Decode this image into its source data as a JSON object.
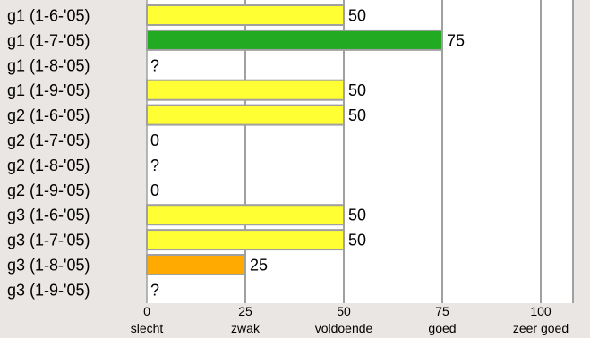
{
  "chart_data": {
    "type": "bar",
    "orientation": "horizontal",
    "categories": [
      "g1 (1-6-'05)",
      "g1 (1-7-'05)",
      "g1 (1-8-'05)",
      "g1 (1-9-'05)",
      "g2 (1-6-'05)",
      "g2 (1-7-'05)",
      "g2 (1-8-'05)",
      "g2 (1-9-'05)",
      "g3 (1-6-'05)",
      "g3 (1-7-'05)",
      "g3 (1-8-'05)",
      "g3 (1-9-'05)"
    ],
    "values": [
      50,
      75,
      null,
      50,
      50,
      0,
      null,
      0,
      50,
      50,
      25,
      null
    ],
    "value_labels": [
      "50",
      "75",
      "?",
      "50",
      "50",
      "0",
      "?",
      "0",
      "50",
      "50",
      "25",
      "?"
    ],
    "xlim": [
      0,
      100
    ],
    "xticks": [
      0,
      25,
      50,
      75,
      100
    ],
    "xtick_words": [
      "slecht",
      "zwak",
      "voldoende",
      "goed",
      "zeer goed"
    ],
    "grid": true,
    "color_scale": [
      {
        "value": 25,
        "color": "#ffaa00"
      },
      {
        "value": 50,
        "color": "#ffff33"
      },
      {
        "value": 75,
        "color": "#22aa22"
      }
    ]
  },
  "colors": {
    "background": "#e9e6e3",
    "plot_background": "#ffffff",
    "grid": "#a0a0a0",
    "bar_border": "#a0a0a0"
  }
}
